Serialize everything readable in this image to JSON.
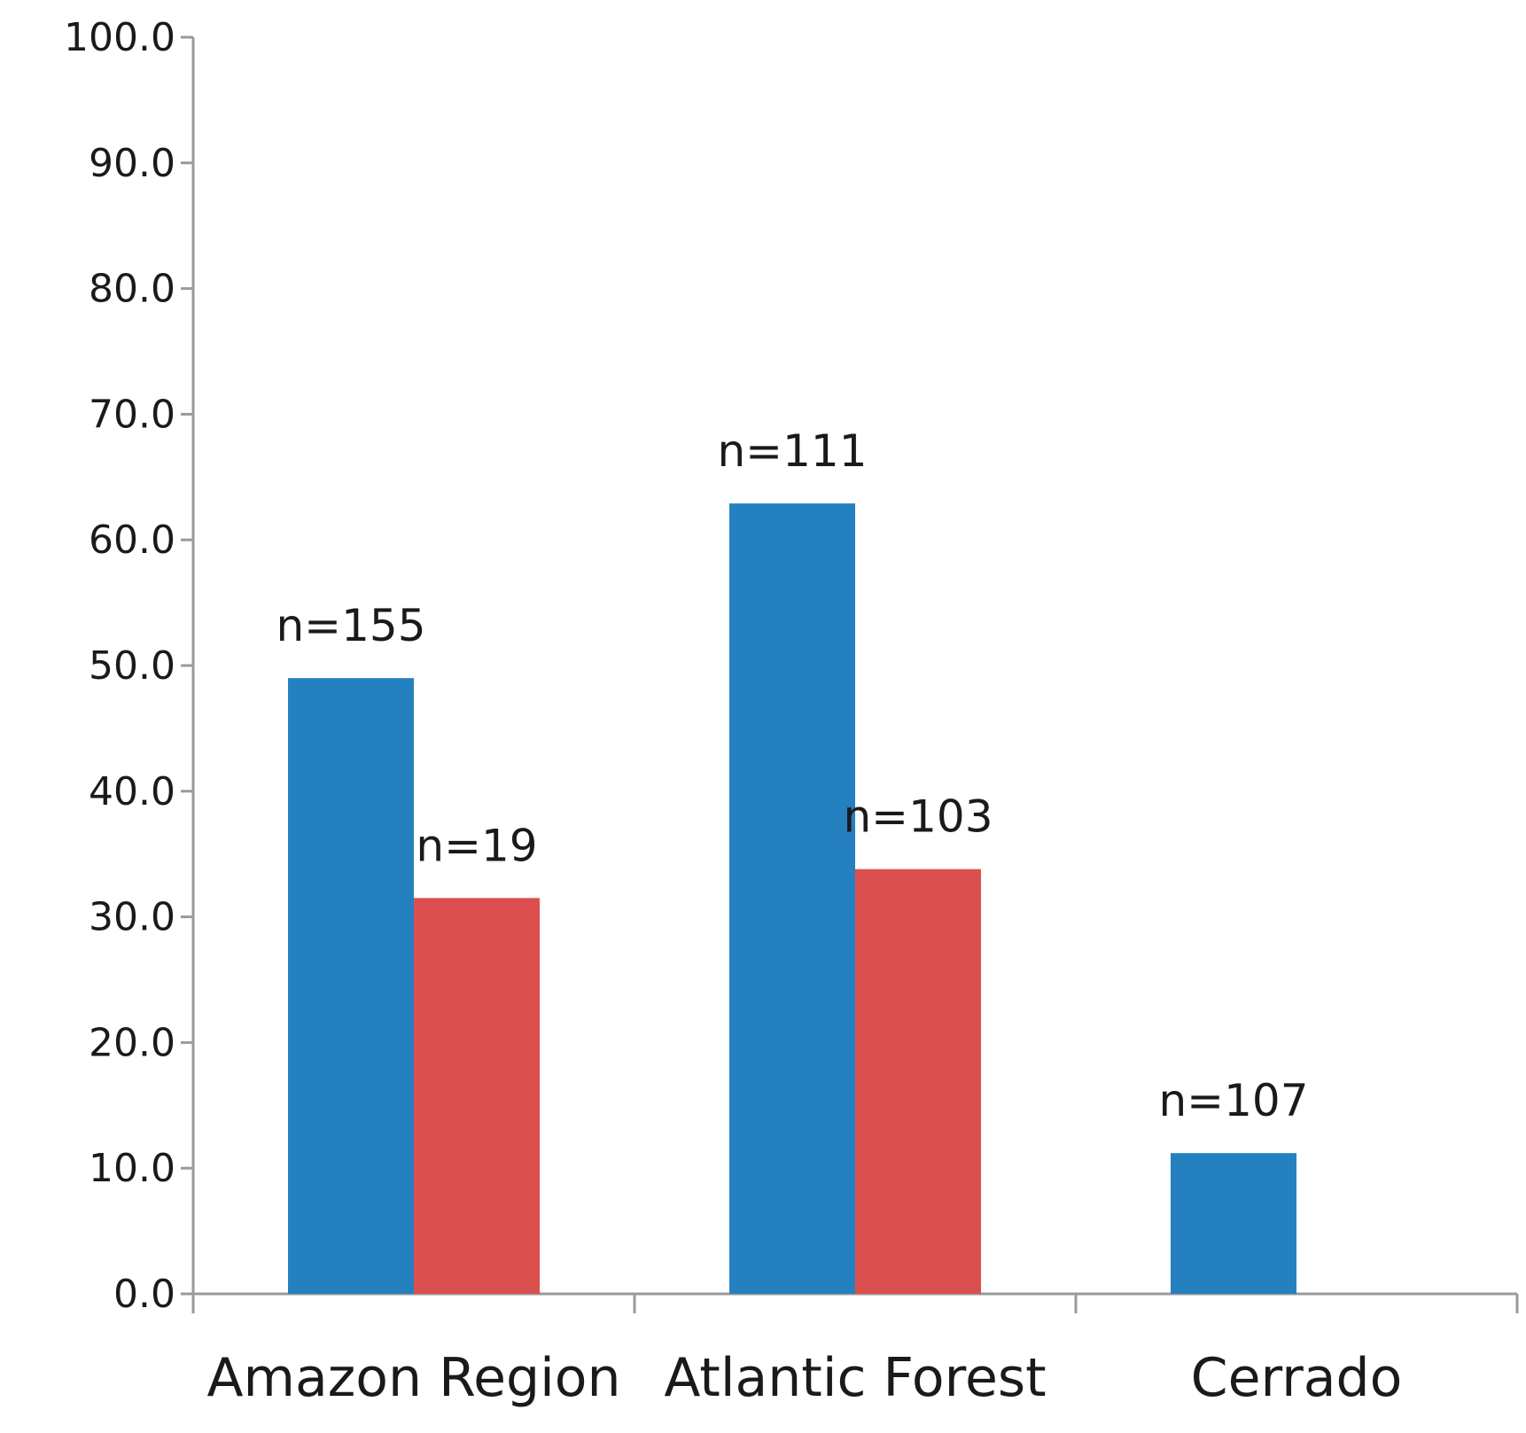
{
  "chart_data": {
    "type": "bar",
    "categories": [
      "Amazon Region",
      "Atlantic Forest",
      "Cerrado"
    ],
    "series": [
      {
        "color": "#2580C0",
        "values": [
          49.0,
          62.9,
          11.2
        ],
        "labels": [
          "n=155",
          "n=111",
          "n=107"
        ]
      },
      {
        "color": "#DC4F4F",
        "values": [
          31.5,
          33.8,
          null
        ],
        "labels": [
          "n=19",
          "n=103",
          ""
        ]
      }
    ],
    "ylim": [
      0,
      100
    ],
    "yticks": [
      "0.0",
      "10.0",
      "20.0",
      "30.0",
      "40.0",
      "50.0",
      "60.0",
      "70.0",
      "80.0",
      "90.0",
      "100.0"
    ],
    "title": "",
    "xlabel": "",
    "ylabel": "",
    "grid": false,
    "axis_color": "#9A9A9A"
  }
}
